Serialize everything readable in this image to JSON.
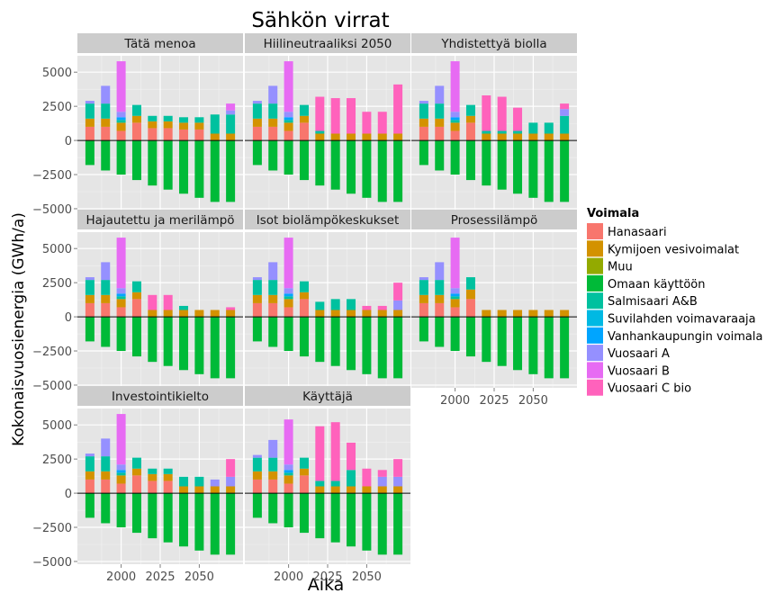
{
  "chart_data": {
    "type": "bar",
    "stacked": true,
    "title": "Sähkön virrat",
    "xlabel": "Aika",
    "ylabel": "Kokonaisvuosienergia (GWh/a)",
    "x": [
      1980,
      1990,
      2000,
      2010,
      2020,
      2030,
      2040,
      2050,
      2060,
      2070
    ],
    "x_tick_labels": [
      "2000",
      "2025",
      "2050"
    ],
    "x_ticks": [
      2000,
      2025,
      2050
    ],
    "ylim": [
      -5200,
      6200
    ],
    "y_ticks": [
      -5000,
      -2500,
      0,
      2500,
      5000
    ],
    "y_tick_labels": [
      "−5000",
      "−2500",
      "0",
      "2500",
      "5000"
    ],
    "legend": {
      "title": "Voimala",
      "position": "right",
      "entries": [
        {
          "name": "Hanasaari",
          "color": "#F8766D"
        },
        {
          "name": "Kymijoen vesivoimalat",
          "color": "#D39200"
        },
        {
          "name": "Muu",
          "color": "#93AA00"
        },
        {
          "name": "Omaan käyttöön",
          "color": "#00BA38"
        },
        {
          "name": "Salmisaari A&B",
          "color": "#00C19F"
        },
        {
          "name": "Suvilahden voimavaraaja",
          "color": "#00B9E3"
        },
        {
          "name": "Vanhankaupungin voimala",
          "color": "#00A5FF"
        },
        {
          "name": "Vuosaari A",
          "color": "#9590FF"
        },
        {
          "name": "Vuosaari B",
          "color": "#E76BF3"
        },
        {
          "name": "Vuosaari C bio",
          "color": "#FF62BC"
        }
      ]
    },
    "panels": [
      {
        "title": "Tätä menoa",
        "negative": {
          "Omaan käyttöön": [
            -1800,
            -2200,
            -2500,
            -2900,
            -3300,
            -3600,
            -3900,
            -4200,
            -4500,
            -4500
          ]
        },
        "positive": {
          "Hanasaari": [
            1000,
            1000,
            700,
            1300,
            900,
            900,
            800,
            800,
            0,
            0
          ],
          "Kymijoen vesivoimalat": [
            600,
            600,
            600,
            500,
            500,
            500,
            500,
            500,
            500,
            500
          ],
          "Salmisaari A&B": [
            1100,
            1100,
            200,
            800,
            400,
            400,
            400,
            400,
            1400,
            1400
          ],
          "Vanhankaupungin voimala": [
            0,
            0,
            200,
            0,
            0,
            0,
            0,
            0,
            0,
            0
          ],
          "Vuosaari A": [
            200,
            1300,
            400,
            0,
            0,
            0,
            0,
            0,
            0,
            300
          ],
          "Vuosaari B": [
            0,
            0,
            3700,
            0,
            0,
            0,
            0,
            0,
            0,
            500
          ]
        }
      },
      {
        "title": "Hiilineutraaliksi 2050",
        "negative": {
          "Omaan käyttöön": [
            -1800,
            -2200,
            -2500,
            -2900,
            -3300,
            -3600,
            -3900,
            -4200,
            -4500,
            -4500
          ]
        },
        "positive": {
          "Hanasaari": [
            1000,
            1000,
            700,
            1300,
            0,
            0,
            0,
            0,
            0,
            0
          ],
          "Kymijoen vesivoimalat": [
            600,
            600,
            600,
            500,
            500,
            500,
            500,
            500,
            500,
            500
          ],
          "Salmisaari A&B": [
            1100,
            1100,
            200,
            800,
            200,
            0,
            0,
            0,
            0,
            0
          ],
          "Vanhankaupungin voimala": [
            0,
            0,
            200,
            0,
            0,
            0,
            0,
            0,
            0,
            0
          ],
          "Vuosaari A": [
            200,
            1300,
            400,
            0,
            0,
            0,
            0,
            0,
            0,
            0
          ],
          "Vuosaari B": [
            0,
            0,
            3700,
            0,
            0,
            0,
            0,
            0,
            0,
            0
          ],
          "Vuosaari C bio": [
            0,
            0,
            0,
            0,
            2500,
            2600,
            2600,
            1600,
            1600,
            3600
          ]
        }
      },
      {
        "title": "Yhdistettyä biolla",
        "negative": {
          "Omaan käyttöön": [
            -1800,
            -2200,
            -2500,
            -2900,
            -3300,
            -3600,
            -3900,
            -4200,
            -4500,
            -4500
          ]
        },
        "positive": {
          "Hanasaari": [
            1000,
            1000,
            700,
            1300,
            0,
            0,
            0,
            0,
            0,
            0
          ],
          "Kymijoen vesivoimalat": [
            600,
            600,
            600,
            500,
            500,
            500,
            500,
            500,
            500,
            500
          ],
          "Salmisaari A&B": [
            1100,
            1100,
            200,
            800,
            200,
            200,
            200,
            800,
            800,
            1300
          ],
          "Vanhankaupungin voimala": [
            0,
            0,
            200,
            0,
            0,
            0,
            0,
            0,
            0,
            0
          ],
          "Vuosaari A": [
            200,
            1300,
            400,
            0,
            0,
            0,
            0,
            0,
            0,
            500
          ],
          "Vuosaari B": [
            0,
            0,
            3700,
            0,
            0,
            0,
            0,
            0,
            0,
            0
          ],
          "Vuosaari C bio": [
            0,
            0,
            0,
            0,
            2600,
            2500,
            1700,
            0,
            0,
            400
          ]
        }
      },
      {
        "title": "Hajautettu ja merilämpö",
        "negative": {
          "Omaan käyttöön": [
            -1800,
            -2200,
            -2500,
            -2900,
            -3300,
            -3600,
            -3900,
            -4200,
            -4500,
            -4500
          ]
        },
        "positive": {
          "Hanasaari": [
            1000,
            1000,
            700,
            1300,
            0,
            0,
            0,
            0,
            0,
            0
          ],
          "Kymijoen vesivoimalat": [
            600,
            600,
            600,
            500,
            500,
            500,
            500,
            500,
            500,
            500
          ],
          "Salmisaari A&B": [
            1100,
            1100,
            200,
            800,
            0,
            0,
            300,
            0,
            0,
            0
          ],
          "Vanhankaupungin voimala": [
            0,
            0,
            200,
            0,
            0,
            0,
            0,
            0,
            0,
            0
          ],
          "Vuosaari A": [
            200,
            1300,
            400,
            0,
            0,
            0,
            0,
            0,
            0,
            0
          ],
          "Vuosaari B": [
            0,
            0,
            3700,
            0,
            0,
            0,
            0,
            0,
            0,
            0
          ],
          "Vuosaari C bio": [
            0,
            0,
            0,
            0,
            1100,
            1100,
            0,
            0,
            0,
            200
          ]
        }
      },
      {
        "title": "Isot biolämpökeskukset",
        "negative": {
          "Omaan käyttöön": [
            -1800,
            -2200,
            -2500,
            -2900,
            -3300,
            -3600,
            -3900,
            -4200,
            -4500,
            -4500
          ]
        },
        "positive": {
          "Hanasaari": [
            1000,
            1000,
            700,
            1300,
            0,
            0,
            0,
            0,
            0,
            0
          ],
          "Kymijoen vesivoimalat": [
            600,
            600,
            600,
            500,
            500,
            500,
            500,
            500,
            500,
            500
          ],
          "Salmisaari A&B": [
            1100,
            1100,
            200,
            800,
            600,
            800,
            800,
            0,
            0,
            0
          ],
          "Vanhankaupungin voimala": [
            0,
            0,
            200,
            0,
            0,
            0,
            0,
            0,
            0,
            0
          ],
          "Vuosaari A": [
            200,
            1300,
            400,
            0,
            0,
            0,
            0,
            0,
            0,
            700
          ],
          "Vuosaari B": [
            0,
            0,
            3700,
            0,
            0,
            0,
            0,
            0,
            0,
            0
          ],
          "Vuosaari C bio": [
            0,
            0,
            0,
            0,
            0,
            0,
            0,
            300,
            300,
            1300
          ]
        }
      },
      {
        "title": "Prosessilämpö",
        "negative": {
          "Omaan käyttöön": [
            -1800,
            -2200,
            -2500,
            -2900,
            -3300,
            -3600,
            -3900,
            -4200,
            -4500,
            -4500
          ]
        },
        "positive": {
          "Hanasaari": [
            1000,
            1000,
            700,
            1300,
            0,
            0,
            0,
            0,
            0,
            0
          ],
          "Kymijoen vesivoimalat": [
            600,
            600,
            600,
            700,
            500,
            500,
            500,
            500,
            500,
            500
          ],
          "Salmisaari A&B": [
            1100,
            1100,
            200,
            900,
            0,
            0,
            0,
            0,
            0,
            0
          ],
          "Vanhankaupungin voimala": [
            0,
            0,
            200,
            0,
            0,
            0,
            0,
            0,
            0,
            0
          ],
          "Vuosaari A": [
            200,
            1300,
            400,
            0,
            0,
            0,
            0,
            0,
            0,
            0
          ],
          "Vuosaari B": [
            0,
            0,
            3700,
            0,
            0,
            0,
            0,
            0,
            0,
            0
          ]
        }
      },
      {
        "title": "Investointikielto",
        "negative": {
          "Omaan käyttöön": [
            -1800,
            -2200,
            -2500,
            -2900,
            -3300,
            -3600,
            -3900,
            -4200,
            -4500,
            -4500
          ]
        },
        "positive": {
          "Hanasaari": [
            1000,
            1000,
            700,
            1300,
            900,
            900,
            0,
            0,
            0,
            0
          ],
          "Kymijoen vesivoimalat": [
            600,
            600,
            600,
            500,
            500,
            500,
            500,
            500,
            500,
            500
          ],
          "Salmisaari A&B": [
            1100,
            1100,
            200,
            800,
            400,
            400,
            700,
            700,
            0,
            0
          ],
          "Vanhankaupungin voimala": [
            0,
            0,
            200,
            0,
            0,
            0,
            0,
            0,
            0,
            0
          ],
          "Vuosaari A": [
            200,
            1300,
            400,
            0,
            0,
            0,
            0,
            0,
            500,
            700
          ],
          "Vuosaari B": [
            0,
            0,
            3700,
            0,
            0,
            0,
            0,
            0,
            0,
            0
          ],
          "Vuosaari C bio": [
            0,
            0,
            0,
            0,
            0,
            0,
            0,
            0,
            0,
            1300
          ]
        }
      },
      {
        "title": "Käyttäjä",
        "negative": {
          "Omaan käyttöön": [
            -1800,
            -2200,
            -2500,
            -2900,
            -3300,
            -3600,
            -3900,
            -4200,
            -4500,
            -4500
          ]
        },
        "positive": {
          "Hanasaari": [
            1000,
            1000,
            700,
            1300,
            0,
            0,
            0,
            0,
            0,
            0
          ],
          "Kymijoen vesivoimalat": [
            600,
            600,
            600,
            500,
            500,
            500,
            500,
            500,
            500,
            500
          ],
          "Salmisaari A&B": [
            1000,
            1000,
            200,
            800,
            400,
            400,
            1200,
            0,
            0,
            0
          ],
          "Vanhankaupungin voimala": [
            0,
            0,
            200,
            0,
            0,
            0,
            0,
            0,
            0,
            0
          ],
          "Vuosaari A": [
            200,
            1300,
            400,
            0,
            0,
            0,
            0,
            0,
            700,
            700
          ],
          "Vuosaari B": [
            0,
            0,
            3300,
            0,
            0,
            0,
            0,
            0,
            0,
            0
          ],
          "Vuosaari C bio": [
            0,
            0,
            0,
            0,
            4000,
            4300,
            2000,
            1300,
            500,
            1300
          ]
        }
      }
    ]
  }
}
